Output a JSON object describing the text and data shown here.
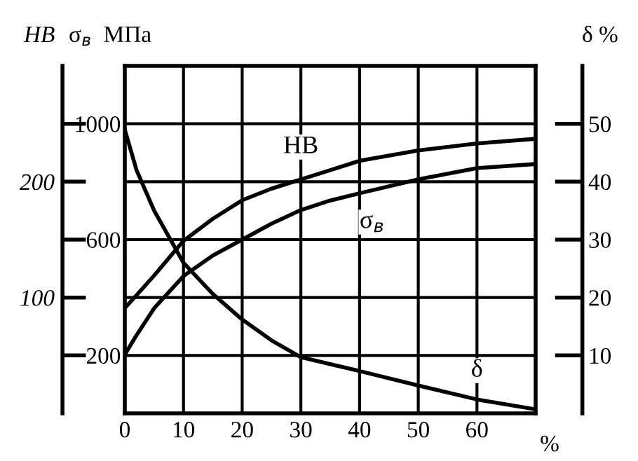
{
  "chart_data": {
    "type": "line",
    "xlabel": "%",
    "ylabel": "σ$_{в}$  МПа",
    "y2label": "δ %",
    "y3label": "HB",
    "x": [
      0,
      2,
      5,
      10,
      15,
      20,
      25,
      30,
      35,
      40,
      50,
      60,
      70
    ],
    "xlim": [
      0,
      70
    ],
    "xticks": [
      0,
      10,
      20,
      30,
      40,
      50,
      60
    ],
    "ylim": [
      0,
      1200
    ],
    "yticks": [
      {
        "value": 200,
        "label": "200"
      },
      {
        "value": 400,
        "label": null
      },
      {
        "value": 600,
        "label": "600"
      },
      {
        "value": 800,
        "label": null
      },
      {
        "value": 1000,
        "label": "1000"
      }
    ],
    "y2lim": [
      0,
      60
    ],
    "y2ticks": [
      10,
      20,
      30,
      40,
      50
    ],
    "y3lim": [
      0,
      300
    ],
    "y3ticks": [
      {
        "value": 50,
        "label": null
      },
      {
        "value": 100,
        "label": "100"
      },
      {
        "value": 150,
        "label": null
      },
      {
        "value": 200,
        "label": "200"
      },
      {
        "value": 250,
        "label": null
      }
    ],
    "grid": true,
    "marker": "none",
    "line_style": "solid",
    "series": [
      {
        "name": "HB",
        "color": "#000000",
        "axis": "y3",
        "values": [
          91,
          102,
          119,
          149,
          168,
          184,
          194,
          202,
          210,
          218,
          227,
          233,
          237
        ]
      },
      {
        "name": "σ$_{в}$",
        "color": "#000000",
        "values": [
          203,
          270,
          363,
          474,
          545,
          600,
          655,
          702,
          735,
          760,
          808,
          847,
          861
        ]
      },
      {
        "name": "δ",
        "color": "#000000",
        "axis": "y2",
        "values": [
          49,
          42,
          35,
          26,
          20.6,
          16.2,
          12.6,
          9.7,
          8.5,
          7.3,
          4.8,
          2.4,
          0.7
        ]
      }
    ]
  }
}
